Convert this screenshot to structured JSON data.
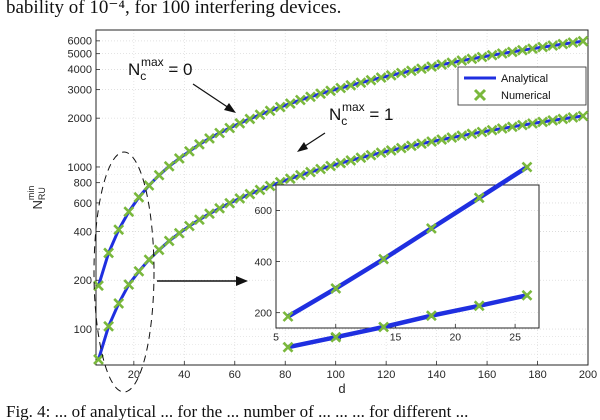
{
  "captions": {
    "top": "bability of 10⁻⁴, for 100 interfering devices.",
    "bottom": "Fig. 4: ... of analytical ... for the ... number of ... ... ... for different ..."
  },
  "colors": {
    "analytical": "#1f2fe0",
    "numerical": "#7ab83c",
    "grid": "#d9d9d9",
    "axis": "#262626"
  },
  "annotations": {
    "nc0": {
      "base": "N",
      "sub": "c",
      "sup": "max",
      "rest": " = 0"
    },
    "nc1": {
      "base": "N",
      "sub": "c",
      "sup": "max",
      "rest": " = 1"
    }
  },
  "chart_data": [
    {
      "id": "main",
      "type": "line",
      "scale_y": "log",
      "xlabel": "d",
      "ylabel": {
        "base": "N",
        "sub": "RU",
        "sup": "min"
      },
      "xlim": [
        5,
        200
      ],
      "ylim": [
        60,
        7000
      ],
      "xticks": [
        20,
        40,
        60,
        80,
        100,
        120,
        140,
        160,
        180,
        200
      ],
      "yticks": [
        100,
        200,
        400,
        600,
        800,
        1000,
        2000,
        3000,
        4000,
        5000,
        6000
      ],
      "grid": true,
      "legend": {
        "position": "top-right",
        "entries": [
          "Analytical",
          "Numerical"
        ]
      },
      "series": [
        {
          "name": "Analytical",
          "style": "line",
          "x": [
            6,
            10,
            14,
            18,
            22,
            26,
            30,
            34,
            38,
            42,
            46,
            50,
            54,
            58,
            62,
            66,
            70,
            74,
            78,
            82,
            86,
            90,
            94,
            98,
            102,
            106,
            110,
            114,
            118,
            122,
            126,
            130,
            134,
            138,
            142,
            146,
            150,
            154,
            158,
            162,
            166,
            170,
            174,
            178,
            182,
            186,
            190,
            194,
            198
          ],
          "y": [
            185,
            295,
            410,
            530,
            650,
            770,
            890,
            1010,
            1130,
            1250,
            1380,
            1500,
            1620,
            1740,
            1860,
            1980,
            2100,
            2220,
            2340,
            2460,
            2590,
            2710,
            2830,
            2950,
            3070,
            3190,
            3310,
            3430,
            3560,
            3680,
            3800,
            3920,
            4040,
            4160,
            4280,
            4400,
            4530,
            4650,
            4770,
            4890,
            5010,
            5130,
            5250,
            5370,
            5490,
            5610,
            5730,
            5850,
            5970
          ]
        },
        {
          "name": "Numerical",
          "style": "marker-x",
          "x": [
            6,
            10,
            14,
            18,
            22,
            26,
            30,
            34,
            38,
            42,
            46,
            50,
            54,
            58,
            62,
            66,
            70,
            74,
            78,
            82,
            86,
            90,
            94,
            98,
            102,
            106,
            110,
            114,
            118,
            122,
            126,
            130,
            134,
            138,
            142,
            146,
            150,
            154,
            158,
            162,
            166,
            170,
            174,
            178,
            182,
            186,
            190,
            194,
            198
          ],
          "y": [
            185,
            295,
            410,
            530,
            650,
            770,
            890,
            1010,
            1130,
            1250,
            1380,
            1500,
            1620,
            1740,
            1860,
            1980,
            2100,
            2220,
            2340,
            2460,
            2590,
            2710,
            2830,
            2950,
            3070,
            3190,
            3310,
            3430,
            3560,
            3680,
            3800,
            3920,
            4040,
            4160,
            4280,
            4400,
            4530,
            4650,
            4770,
            4890,
            5010,
            5130,
            5250,
            5370,
            5490,
            5610,
            5730,
            5850,
            5970
          ]
        },
        {
          "name": "Analytical",
          "style": "line",
          "x": [
            6,
            10,
            14,
            18,
            22,
            26,
            30,
            34,
            38,
            42,
            46,
            50,
            54,
            58,
            62,
            66,
            70,
            74,
            78,
            82,
            86,
            90,
            94,
            98,
            102,
            106,
            110,
            114,
            118,
            122,
            126,
            130,
            134,
            138,
            142,
            146,
            150,
            154,
            158,
            162,
            166,
            170,
            174,
            178,
            182,
            186,
            190,
            194,
            198
          ],
          "y": [
            65,
            104,
            144,
            188,
            227,
            268,
            308,
            350,
            390,
            432,
            473,
            515,
            556,
            598,
            640,
            680,
            722,
            763,
            805,
            847,
            890,
            930,
            972,
            1014,
            1056,
            1098,
            1140,
            1182,
            1224,
            1266,
            1308,
            1350,
            1392,
            1434,
            1476,
            1518,
            1560,
            1602,
            1644,
            1686,
            1728,
            1770,
            1812,
            1854,
            1896,
            1938,
            1980,
            2022,
            2064
          ]
        },
        {
          "name": "Numerical",
          "style": "marker-x",
          "x": [
            6,
            10,
            14,
            18,
            22,
            26,
            30,
            34,
            38,
            42,
            46,
            50,
            54,
            58,
            62,
            66,
            70,
            74,
            78,
            82,
            86,
            90,
            94,
            98,
            102,
            106,
            110,
            114,
            118,
            122,
            126,
            130,
            134,
            138,
            142,
            146,
            150,
            154,
            158,
            162,
            166,
            170,
            174,
            178,
            182,
            186,
            190,
            194,
            198
          ],
          "y": [
            65,
            104,
            144,
            188,
            227,
            268,
            308,
            350,
            390,
            432,
            473,
            515,
            556,
            598,
            640,
            680,
            722,
            763,
            805,
            847,
            890,
            930,
            972,
            1014,
            1056,
            1098,
            1140,
            1182,
            1224,
            1266,
            1308,
            1350,
            1392,
            1434,
            1476,
            1518,
            1560,
            1602,
            1644,
            1686,
            1728,
            1770,
            1812,
            1854,
            1896,
            1938,
            1980,
            2022,
            2064
          ]
        }
      ]
    },
    {
      "id": "inset",
      "type": "line",
      "scale_y": "linear",
      "xlim": [
        5,
        27
      ],
      "ylim": [
        140,
        700
      ],
      "xticks": [
        5,
        10,
        15,
        20,
        25
      ],
      "yticks": [
        200,
        400,
        600
      ],
      "grid": true,
      "series": [
        {
          "name": "Analytical",
          "style": "line",
          "x": [
            6,
            10,
            14,
            18,
            22,
            26
          ],
          "y": [
            185,
            295,
            410,
            530,
            650,
            770
          ]
        },
        {
          "name": "Numerical",
          "style": "marker-x",
          "x": [
            6,
            10,
            14,
            18,
            22,
            26
          ],
          "y": [
            185,
            295,
            410,
            530,
            650,
            770
          ]
        },
        {
          "name": "Analytical",
          "style": "line",
          "x": [
            6,
            10,
            14,
            18,
            22,
            26
          ],
          "y": [
            65,
            104,
            144,
            188,
            227,
            268
          ]
        },
        {
          "name": "Numerical",
          "style": "marker-x",
          "x": [
            6,
            10,
            14,
            18,
            22,
            26
          ],
          "y": [
            65,
            104,
            144,
            188,
            227,
            268
          ]
        }
      ]
    }
  ]
}
